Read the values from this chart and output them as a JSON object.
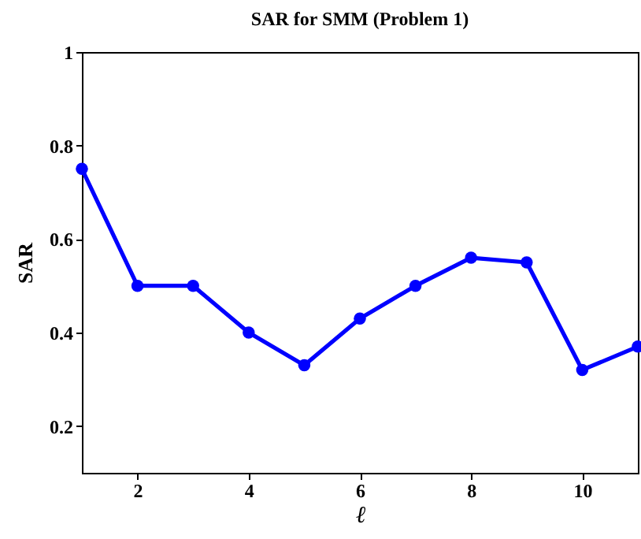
{
  "chart_data": {
    "type": "line",
    "title": "SAR for SMM (Problem 1)",
    "xlabel": "ℓ",
    "ylabel": "SAR",
    "x": [
      1,
      2,
      3,
      4,
      5,
      6,
      7,
      8,
      9,
      10,
      11
    ],
    "series": [
      {
        "color": "#0000ff",
        "values": [
          0.75,
          0.5,
          0.5,
          0.4,
          0.33,
          0.43,
          0.5,
          0.56,
          0.55,
          0.32,
          0.37
        ]
      }
    ],
    "xlim": [
      1,
      11
    ],
    "xticks": [
      2,
      4,
      6,
      8,
      10
    ],
    "ylim": [
      0.1,
      1
    ],
    "yticks": [
      0.2,
      0.4,
      0.6,
      0.8,
      1
    ],
    "grid": false,
    "legend": false,
    "marker": "circle",
    "line_style": "solid"
  }
}
